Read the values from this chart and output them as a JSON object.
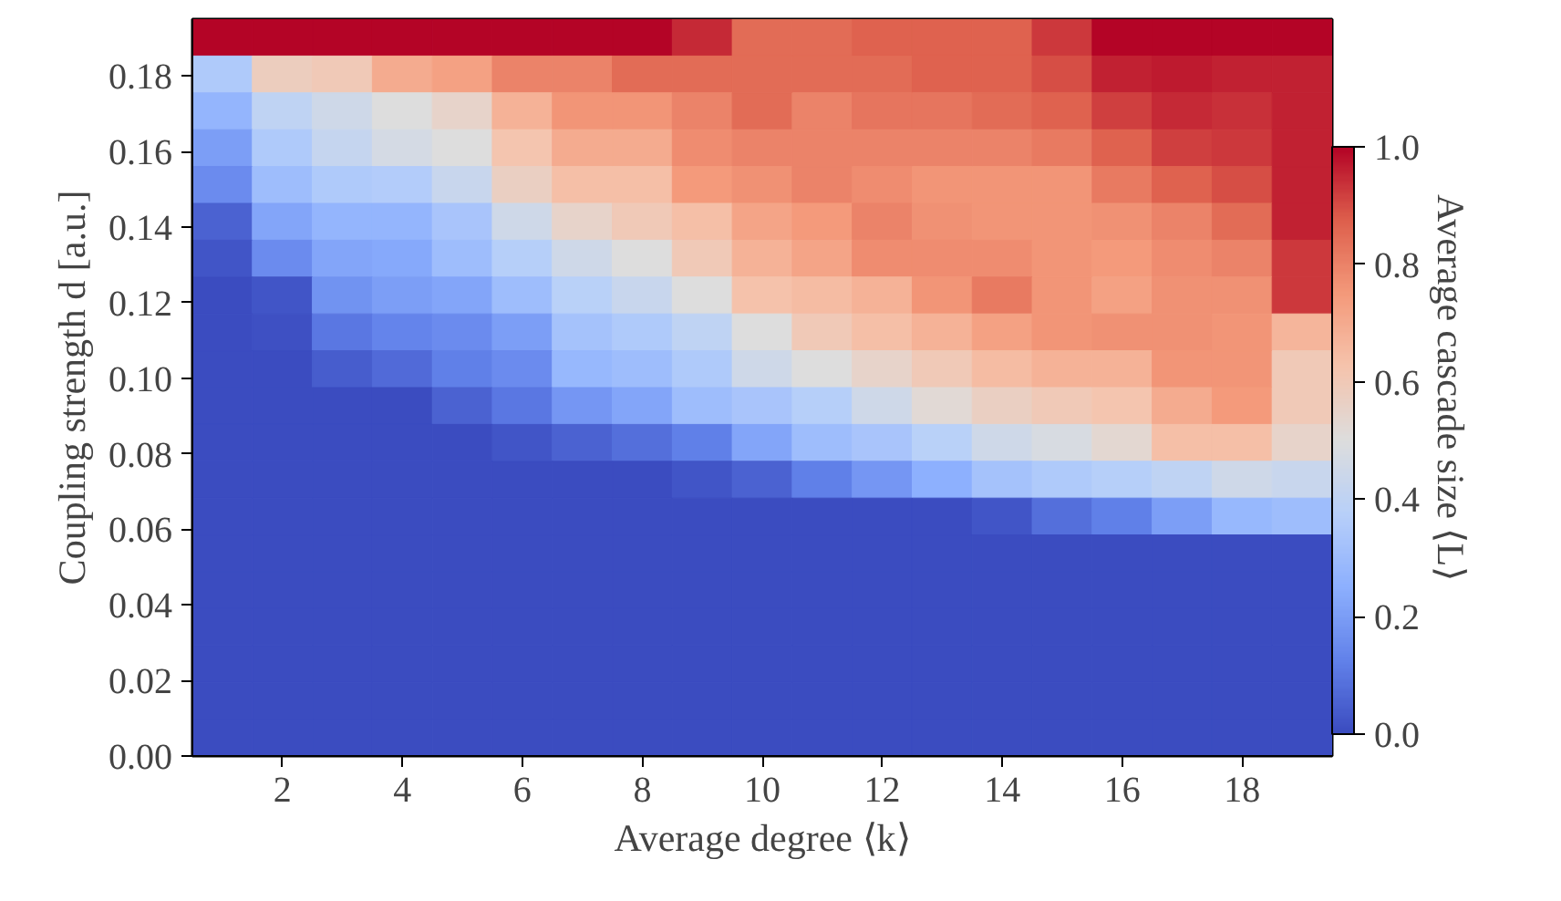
{
  "chart_data": {
    "type": "heatmap",
    "xlabel": "Average degree ⟨k⟩",
    "ylabel": "Coupling strength d [a.u.]",
    "clabel": "Average cascade size ⟨L⟩",
    "x": [
      1,
      2,
      3,
      4,
      5,
      6,
      7,
      8,
      9,
      10,
      11,
      12,
      13,
      14,
      15,
      16,
      17,
      18,
      19
    ],
    "xlim": [
      0.5,
      19.5
    ],
    "xticks": [
      2,
      4,
      6,
      8,
      10,
      12,
      14,
      16,
      18
    ],
    "ylim": [
      0,
      0.195
    ],
    "yticks": [
      {
        "value": 0,
        "label": "0.00"
      },
      {
        "value": 0.02,
        "label": "0.02"
      },
      {
        "value": 0.04,
        "label": "0.04"
      },
      {
        "value": 0.06,
        "label": "0.06"
      },
      {
        "value": 0.08,
        "label": "0.08"
      },
      {
        "value": 0.1,
        "label": "0.10"
      },
      {
        "value": 0.12,
        "label": "0.12"
      },
      {
        "value": 0.14,
        "label": "0.14"
      },
      {
        "value": 0.16,
        "label": "0.16"
      },
      {
        "value": 0.18,
        "label": "0.18"
      }
    ],
    "clim": [
      0,
      1
    ],
    "cticks": [
      {
        "value": 0,
        "label": "0.0"
      },
      {
        "value": 0.2,
        "label": "0.2"
      },
      {
        "value": 0.4,
        "label": "0.4"
      },
      {
        "value": 0.6,
        "label": "0.6"
      },
      {
        "value": 0.8,
        "label": "0.8"
      },
      {
        "value": 1,
        "label": "1.0"
      }
    ],
    "cells": [
      [
        1,
        1,
        1,
        1,
        1,
        1,
        1,
        1,
        0.95,
        0.85,
        0.85,
        0.87,
        0.87,
        0.87,
        0.93,
        1,
        1,
        1,
        1
      ],
      [
        0.35,
        0.58,
        0.6,
        0.7,
        0.73,
        0.8,
        0.8,
        0.85,
        0.85,
        0.85,
        0.85,
        0.85,
        0.87,
        0.87,
        0.9,
        0.96,
        0.97,
        0.96,
        0.96
      ],
      [
        0.27,
        0.4,
        0.45,
        0.5,
        0.55,
        0.68,
        0.76,
        0.76,
        0.8,
        0.85,
        0.8,
        0.83,
        0.83,
        0.85,
        0.87,
        0.92,
        0.95,
        0.94,
        0.96
      ],
      [
        0.2,
        0.35,
        0.42,
        0.47,
        0.5,
        0.62,
        0.7,
        0.7,
        0.78,
        0.8,
        0.8,
        0.8,
        0.8,
        0.8,
        0.82,
        0.87,
        0.92,
        0.93,
        0.96
      ],
      [
        0.15,
        0.3,
        0.35,
        0.36,
        0.43,
        0.57,
        0.64,
        0.64,
        0.75,
        0.77,
        0.8,
        0.78,
        0.76,
        0.76,
        0.76,
        0.82,
        0.87,
        0.9,
        0.96
      ],
      [
        0.05,
        0.22,
        0.27,
        0.27,
        0.33,
        0.45,
        0.55,
        0.6,
        0.64,
        0.72,
        0.75,
        0.8,
        0.77,
        0.76,
        0.76,
        0.77,
        0.8,
        0.85,
        0.96
      ],
      [
        0.02,
        0.15,
        0.22,
        0.23,
        0.3,
        0.37,
        0.45,
        0.5,
        0.6,
        0.68,
        0.72,
        0.78,
        0.78,
        0.78,
        0.76,
        0.75,
        0.78,
        0.8,
        0.93
      ],
      [
        0,
        0.02,
        0.17,
        0.2,
        0.22,
        0.3,
        0.38,
        0.43,
        0.5,
        0.63,
        0.65,
        0.68,
        0.76,
        0.82,
        0.76,
        0.73,
        0.77,
        0.77,
        0.93
      ],
      [
        0,
        0.01,
        0.1,
        0.13,
        0.15,
        0.2,
        0.32,
        0.35,
        0.4,
        0.5,
        0.6,
        0.64,
        0.68,
        0.73,
        0.76,
        0.77,
        0.77,
        0.76,
        0.67
      ],
      [
        0,
        0,
        0.04,
        0.07,
        0.12,
        0.15,
        0.28,
        0.3,
        0.35,
        0.45,
        0.5,
        0.55,
        0.6,
        0.65,
        0.68,
        0.68,
        0.76,
        0.76,
        0.6
      ],
      [
        0,
        0,
        0,
        0,
        0.05,
        0.1,
        0.18,
        0.22,
        0.3,
        0.33,
        0.37,
        0.45,
        0.52,
        0.57,
        0.6,
        0.62,
        0.7,
        0.75,
        0.6
      ],
      [
        0,
        0,
        0,
        0,
        0,
        0.02,
        0.05,
        0.08,
        0.12,
        0.22,
        0.3,
        0.33,
        0.38,
        0.45,
        0.48,
        0.53,
        0.64,
        0.64,
        0.55
      ],
      [
        0,
        0,
        0,
        0,
        0,
        0,
        0,
        0,
        0.02,
        0.05,
        0.12,
        0.18,
        0.25,
        0.32,
        0.35,
        0.37,
        0.4,
        0.45,
        0.43
      ],
      [
        0,
        0,
        0,
        0,
        0,
        0,
        0,
        0,
        0,
        0,
        0,
        0,
        0,
        0.02,
        0.08,
        0.12,
        0.2,
        0.28,
        0.3
      ],
      [
        0,
        0,
        0,
        0,
        0,
        0,
        0,
        0,
        0,
        0,
        0,
        0,
        0,
        0,
        0,
        0,
        0,
        0,
        0
      ],
      [
        0,
        0,
        0,
        0,
        0,
        0,
        0,
        0,
        0,
        0,
        0,
        0,
        0,
        0,
        0,
        0,
        0,
        0,
        0
      ],
      [
        0,
        0,
        0,
        0,
        0,
        0,
        0,
        0,
        0,
        0,
        0,
        0,
        0,
        0,
        0,
        0,
        0,
        0,
        0
      ],
      [
        0,
        0,
        0,
        0,
        0,
        0,
        0,
        0,
        0,
        0,
        0,
        0,
        0,
        0,
        0,
        0,
        0,
        0,
        0
      ],
      [
        0,
        0,
        0,
        0,
        0,
        0,
        0,
        0,
        0,
        0,
        0,
        0,
        0,
        0,
        0,
        0,
        0,
        0,
        0
      ],
      [
        0,
        0,
        0,
        0,
        0,
        0,
        0,
        0,
        0,
        0,
        0,
        0,
        0,
        0,
        0,
        0,
        0,
        0,
        0
      ]
    ]
  }
}
